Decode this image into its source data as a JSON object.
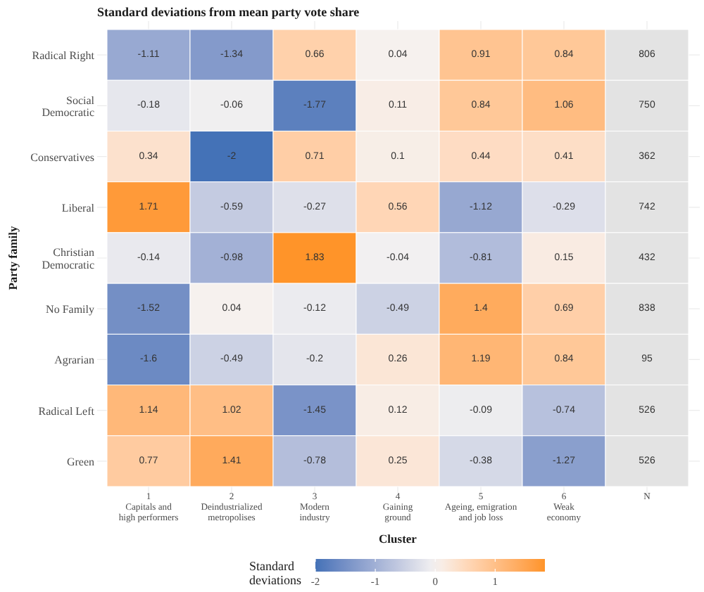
{
  "chart_data": {
    "type": "heatmap",
    "title": "Standard deviations from mean party vote share",
    "xlabel": "Cluster",
    "ylabel": "Party family",
    "clabel": "Standard\ndeviations",
    "categories": [
      "1\nCapitals and\nhigh performers",
      "2\nDeindustrialized\nmetropolises",
      "3\nModern\nindustry",
      "4\nGaining\nground",
      "5\nAgeing, emigration\nand job loss",
      "6\nWeak\neconomy",
      "N"
    ],
    "y_categories": [
      "Radical Right",
      "Social\nDemocratic",
      "Conservatives",
      "Liberal",
      "Christian\nDemocratic",
      "No Family",
      "Agrarian",
      "Radical Left",
      "Green"
    ],
    "cells": [
      [
        -1.11,
        -1.34,
        0.66,
        0.04,
        0.91,
        0.84,
        null
      ],
      [
        -0.18,
        -0.06,
        -1.77,
        0.11,
        0.84,
        1.06,
        null
      ],
      [
        0.34,
        -2,
        0.71,
        0.1,
        0.44,
        0.41,
        null
      ],
      [
        1.71,
        -0.59,
        -0.27,
        0.56,
        -1.12,
        -0.29,
        null
      ],
      [
        -0.14,
        -0.98,
        1.83,
        -0.04,
        -0.81,
        0.15,
        null
      ],
      [
        -1.52,
        0.04,
        -0.12,
        -0.49,
        1.4,
        0.69,
        null
      ],
      [
        -1.6,
        -0.49,
        -0.2,
        0.26,
        1.19,
        0.84,
        null
      ],
      [
        1.14,
        1.02,
        -1.45,
        0.12,
        -0.09,
        -0.74,
        null
      ],
      [
        0.77,
        1.41,
        -0.78,
        0.25,
        -0.38,
        -1.27,
        null
      ]
    ],
    "cell_labels": [
      [
        "-1.11",
        "-1.34",
        "0.66",
        "0.04",
        "0.91",
        "0.84",
        "806"
      ],
      [
        "-0.18",
        "-0.06",
        "-1.77",
        "0.11",
        "0.84",
        "1.06",
        "750"
      ],
      [
        "0.34",
        "-2",
        "0.71",
        "0.1",
        "0.44",
        "0.41",
        "362"
      ],
      [
        "1.71",
        "-0.59",
        "-0.27",
        "0.56",
        "-1.12",
        "-0.29",
        "742"
      ],
      [
        "-0.14",
        "-0.98",
        "1.83",
        "-0.04",
        "-0.81",
        "0.15",
        "432"
      ],
      [
        "-1.52",
        "0.04",
        "-0.12",
        "-0.49",
        "1.4",
        "0.69",
        "838"
      ],
      [
        "-1.6",
        "-0.49",
        "-0.2",
        "0.26",
        "1.19",
        "0.84",
        "95"
      ],
      [
        "1.14",
        "1.02",
        "-1.45",
        "0.12",
        "-0.09",
        "-0.74",
        "526"
      ],
      [
        "0.77",
        "1.41",
        "-0.78",
        "0.25",
        "-0.38",
        "-1.27",
        "526"
      ]
    ],
    "clim": [
      -2,
      1.83
    ],
    "cticks": [
      -2,
      -1,
      0,
      1
    ],
    "data_labels": true,
    "grid": true
  }
}
